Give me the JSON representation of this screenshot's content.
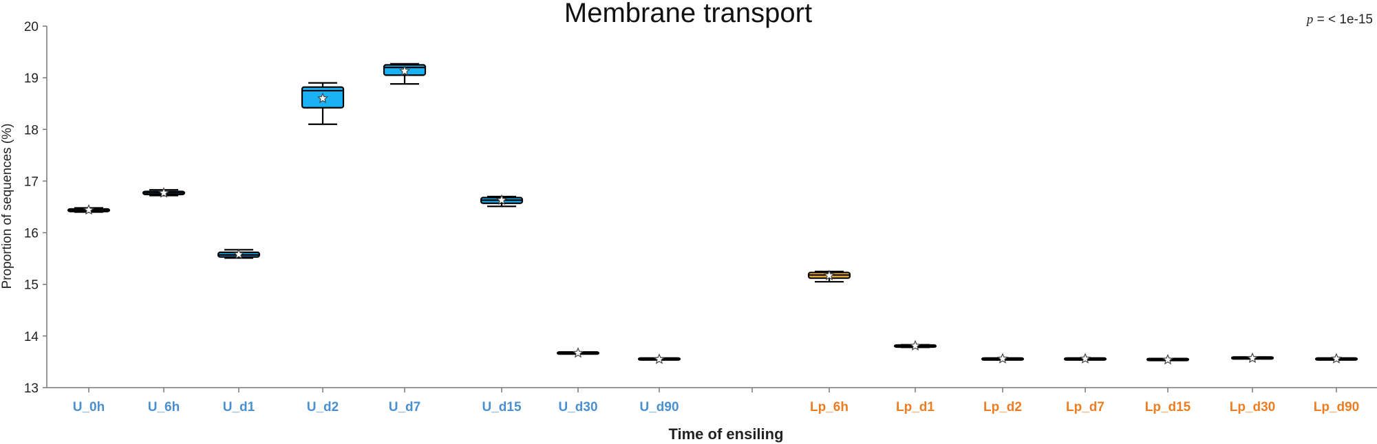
{
  "chart_data": {
    "type": "box",
    "title": "Membrane transport",
    "xlabel": "Time of ensiling",
    "ylabel": "Proportion of sequences (%)",
    "annotation": {
      "symbol": "p",
      "text": " = < 1e-15"
    },
    "ylim": [
      13,
      20
    ],
    "yticks": [
      "13",
      "14",
      "15",
      "16",
      "17",
      "18",
      "19",
      "20"
    ],
    "grid": false,
    "colors": {
      "U": "#1ab2f5",
      "Lp": "#f9b433",
      "U_label": "#4a8fcf",
      "Lp_label": "#ee7d22"
    },
    "series": [
      {
        "group": "U",
        "boxes": [
          {
            "label": "U_0h",
            "min": 16.4,
            "q1": 16.41,
            "median": 16.43,
            "q3": 16.46,
            "max": 16.48,
            "mean": 16.44
          },
          {
            "label": "U_6h",
            "min": 16.72,
            "q1": 16.74,
            "median": 16.77,
            "q3": 16.8,
            "max": 16.83,
            "mean": 16.77
          },
          {
            "label": "U_d1",
            "min": 15.51,
            "q1": 15.53,
            "median": 15.57,
            "q3": 15.62,
            "max": 15.67,
            "mean": 15.58
          },
          {
            "label": "U_d2",
            "min": 18.1,
            "q1": 18.42,
            "median": 18.75,
            "q3": 18.82,
            "max": 18.9,
            "mean": 18.6
          },
          {
            "label": "U_d7",
            "min": 18.88,
            "q1": 19.05,
            "median": 19.2,
            "q3": 19.25,
            "max": 19.27,
            "mean": 19.13
          },
          {
            "label": "U_d15",
            "min": 16.51,
            "q1": 16.57,
            "median": 16.63,
            "q3": 16.68,
            "max": 16.7,
            "mean": 16.63
          },
          {
            "label": "U_d30",
            "min": 13.66,
            "q1": 13.66,
            "median": 13.67,
            "q3": 13.68,
            "max": 13.68,
            "mean": 13.67
          },
          {
            "label": "U_d90",
            "min": 13.54,
            "q1": 13.55,
            "median": 13.55,
            "q3": 13.56,
            "max": 13.56,
            "mean": 13.55
          }
        ]
      },
      {
        "group": "Lp",
        "boxes": [
          {
            "label": "Lp_6h",
            "min": 15.05,
            "q1": 15.12,
            "median": 15.18,
            "q3": 15.23,
            "max": 15.25,
            "mean": 15.17
          },
          {
            "label": "Lp_d1",
            "min": 13.78,
            "q1": 13.79,
            "median": 13.81,
            "q3": 13.82,
            "max": 13.83,
            "mean": 13.81
          },
          {
            "label": "Lp_d2",
            "min": 13.55,
            "q1": 13.55,
            "median": 13.56,
            "q3": 13.56,
            "max": 13.57,
            "mean": 13.56
          },
          {
            "label": "Lp_d7",
            "min": 13.55,
            "q1": 13.55,
            "median": 13.56,
            "q3": 13.56,
            "max": 13.57,
            "mean": 13.56
          },
          {
            "label": "Lp_d15",
            "min": 13.53,
            "q1": 13.54,
            "median": 13.54,
            "q3": 13.55,
            "max": 13.55,
            "mean": 13.54
          },
          {
            "label": "Lp_d30",
            "min": 13.56,
            "q1": 13.57,
            "median": 13.57,
            "q3": 13.58,
            "max": 13.58,
            "mean": 13.57
          },
          {
            "label": "Lp_d90",
            "min": 13.55,
            "q1": 13.55,
            "median": 13.56,
            "q3": 13.56,
            "max": 13.57,
            "mean": 13.56
          }
        ]
      }
    ]
  }
}
